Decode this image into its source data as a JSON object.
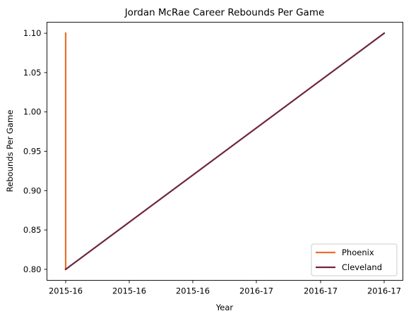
{
  "chart_data": {
    "type": "line",
    "title": "Jordan McRae Career Rebounds Per Game",
    "xlabel": "Year",
    "ylabel": "Rebounds Per Game",
    "x_tick_labels": [
      "2015-16",
      "2015-16",
      "2015-16",
      "2016-17",
      "2016-17",
      "2016-17"
    ],
    "y_ticks": [
      0.8,
      0.85,
      0.9,
      0.95,
      1.0,
      1.05,
      1.1
    ],
    "y_tick_labels": [
      "0.80",
      "0.85",
      "0.90",
      "0.95",
      "1.00",
      "1.05",
      "1.10"
    ],
    "ylim": [
      0.786,
      1.114
    ],
    "x_positions": [
      "2015-16",
      "2016-17"
    ],
    "series": [
      {
        "name": "Phoenix",
        "color": "#e8702a",
        "points": [
          {
            "x": "2015-16",
            "y": 1.1
          },
          {
            "x": "2015-16",
            "y": 0.8
          }
        ]
      },
      {
        "name": "Cleveland",
        "color": "#6f263d",
        "points": [
          {
            "x": "2015-16",
            "y": 0.8
          },
          {
            "x": "2016-17",
            "y": 1.1
          }
        ]
      }
    ],
    "grid": false,
    "legend_position": "lower right"
  }
}
